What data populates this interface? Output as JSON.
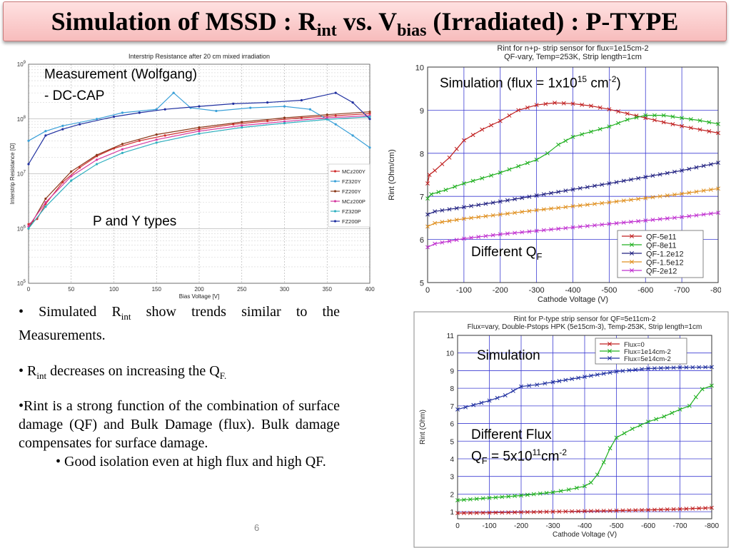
{
  "title": {
    "main": "Simulation of MSSD : R",
    "sub1": "int",
    "mid": " vs. V",
    "sub2": "bias",
    "rest": " (Irradiated) :  P-TYPE"
  },
  "colors": {
    "title_bg": "#f7bcbc",
    "grid_blue": "#3c3cd2",
    "grid_gray": "#c8c8c8"
  },
  "measurement": {
    "callout1": "Measurement (Wolfgang)",
    "callout2": "-    DC-CAP",
    "callout3": "P and Y types",
    "chart_data": {
      "type": "line",
      "title": "Interstrip Resistance after 20 cm mixed irradiation",
      "xlabel": "Bias Voltage [V]",
      "ylabel": "Interstrip Resistance [Ω]",
      "xlim": [
        0,
        400
      ],
      "ylim": [
        100000,
        1000000000
      ],
      "yscale": "log",
      "grid": true,
      "legend": "right",
      "xticks": [
        "0",
        "50",
        "100",
        "150",
        "200",
        "250",
        "300",
        "350",
        "400"
      ],
      "yticks": [
        {
          "b": "10",
          "e": "9"
        },
        {
          "b": "10",
          "e": "8"
        },
        {
          "b": "10",
          "e": "7"
        },
        {
          "b": "10",
          "e": "6"
        },
        {
          "b": "10",
          "e": "5"
        }
      ],
      "series": [
        {
          "name": "MCz200Y",
          "color": "#d03030",
          "points": [
            [
              0,
              1200000.0
            ],
            [
              10,
              1500000.0
            ],
            [
              20,
              2800000.0
            ],
            [
              40,
              7000000.0
            ],
            [
              60,
              13000000.0
            ],
            [
              80,
              21000000.0
            ],
            [
              100,
              29000000.0
            ],
            [
              130,
              40000000.0
            ],
            [
              160,
              50000000.0
            ],
            [
              200,
              65000000.0
            ],
            [
              240,
              80000000.0
            ],
            [
              280,
              92000000.0
            ],
            [
              320,
              105000000.0
            ],
            [
              360,
              115000000.0
            ],
            [
              400,
              125000000.0
            ]
          ]
        },
        {
          "name": "FZ320Y",
          "color": "#3aa0d8",
          "points": [
            [
              0,
              40000000.0
            ],
            [
              20,
              60000000.0
            ],
            [
              40,
              75000000.0
            ],
            [
              80,
              100000000.0
            ],
            [
              110,
              130000000.0
            ],
            [
              150,
              150000000.0
            ],
            [
              170,
              300000000.0
            ],
            [
              190,
              160000000.0
            ],
            [
              220,
              140000000.0
            ],
            [
              260,
              160000000.0
            ],
            [
              300,
              170000000.0
            ],
            [
              330,
              150000000.0
            ],
            [
              360,
              80000000.0
            ],
            [
              380,
              50000000.0
            ],
            [
              400,
              30000000.0
            ]
          ]
        },
        {
          "name": "FZ200Y",
          "color": "#8b3a1a",
          "points": [
            [
              0,
              1000000.0
            ],
            [
              20,
              3500000.0
            ],
            [
              50,
              11000000.0
            ],
            [
              80,
              22000000.0
            ],
            [
              110,
              35000000.0
            ],
            [
              150,
              52000000.0
            ],
            [
              200,
              70000000.0
            ],
            [
              250,
              88000000.0
            ],
            [
              300,
              105000000.0
            ],
            [
              350,
              120000000.0
            ],
            [
              400,
              135000000.0
            ]
          ]
        },
        {
          "name": "MCz200P",
          "color": "#d43aa0",
          "points": [
            [
              0,
              1100000.0
            ],
            [
              20,
              3000000.0
            ],
            [
              50,
              9000000.0
            ],
            [
              80,
              18000000.0
            ],
            [
              110,
              28000000.0
            ],
            [
              150,
              42000000.0
            ],
            [
              200,
              60000000.0
            ],
            [
              250,
              76000000.0
            ],
            [
              300,
              90000000.0
            ],
            [
              350,
              105000000.0
            ],
            [
              400,
              115000000.0
            ]
          ]
        },
        {
          "name": "FZ320P",
          "color": "#30b0c0",
          "points": [
            [
              0,
              1000000.0
            ],
            [
              20,
              2500000.0
            ],
            [
              50,
              7500000.0
            ],
            [
              80,
              15000000.0
            ],
            [
              110,
              24000000.0
            ],
            [
              150,
              37000000.0
            ],
            [
              200,
              54000000.0
            ],
            [
              250,
              70000000.0
            ],
            [
              300,
              84000000.0
            ],
            [
              350,
              98000000.0
            ],
            [
              400,
              110000000.0
            ]
          ]
        },
        {
          "name": "FZ200P",
          "color": "#2030a0",
          "points": [
            [
              0,
              15000000.0
            ],
            [
              20,
              50000000.0
            ],
            [
              40,
              65000000.0
            ],
            [
              60,
              80000000.0
            ],
            [
              100,
              110000000.0
            ],
            [
              130,
              130000000.0
            ],
            [
              160,
              150000000.0
            ],
            [
              200,
              170000000.0
            ],
            [
              240,
              190000000.0
            ],
            [
              280,
              200000000.0
            ],
            [
              320,
              220000000.0
            ],
            [
              360,
              300000000.0
            ],
            [
              380,
              200000000.0
            ],
            [
              400,
              100000000.0
            ]
          ]
        }
      ]
    }
  },
  "sim_qf": {
    "callout": {
      "prefix": "Simulation (flux = 1x10",
      "sup1": "15",
      "mid": " cm",
      "sup2": "-2",
      "suffix": ")"
    },
    "callout2": {
      "prefix": "Different Q",
      "sub": "F"
    },
    "chart_data": {
      "type": "line",
      "title": "Rint for n+p- strip sensor for flux=1e15cm-2",
      "subtitle": "QF-vary, Temp=253K, Strip length=1cm",
      "xlabel": "Cathode Voltage (V)",
      "ylabel": "Rint (Ohm/cm)",
      "xlim": [
        0,
        -800
      ],
      "ylim": [
        5,
        10
      ],
      "grid": true,
      "legend": "bottom-right",
      "xticks": [
        "0",
        "-100",
        "-200",
        "-300",
        "-400",
        "-500",
        "-600",
        "-700",
        "-800"
      ],
      "yticks": [
        "5",
        "6",
        "7",
        "8",
        "9",
        "10"
      ],
      "series": [
        {
          "name": "QF-5e11",
          "color": "#c02020",
          "points": [
            [
              0,
              7.3
            ],
            [
              -5,
              7.5
            ],
            [
              -20,
              7.6
            ],
            [
              -60,
              7.9
            ],
            [
              -100,
              8.3
            ],
            [
              -150,
              8.55
            ],
            [
              -200,
              8.75
            ],
            [
              -250,
              9.0
            ],
            [
              -300,
              9.12
            ],
            [
              -350,
              9.17
            ],
            [
              -400,
              9.15
            ],
            [
              -450,
              9.1
            ],
            [
              -500,
              9.02
            ],
            [
              -550,
              8.92
            ],
            [
              -600,
              8.82
            ],
            [
              -650,
              8.72
            ],
            [
              -700,
              8.63
            ],
            [
              -750,
              8.55
            ],
            [
              -800,
              8.47
            ]
          ]
        },
        {
          "name": "QF-8e11",
          "color": "#20b020",
          "points": [
            [
              0,
              6.95
            ],
            [
              -10,
              7.05
            ],
            [
              -50,
              7.15
            ],
            [
              -100,
              7.3
            ],
            [
              -150,
              7.42
            ],
            [
              -200,
              7.55
            ],
            [
              -250,
              7.7
            ],
            [
              -300,
              7.85
            ],
            [
              -330,
              8.0
            ],
            [
              -360,
              8.2
            ],
            [
              -400,
              8.38
            ],
            [
              -450,
              8.5
            ],
            [
              -500,
              8.62
            ],
            [
              -550,
              8.78
            ],
            [
              -600,
              8.88
            ],
            [
              -650,
              8.88
            ],
            [
              -700,
              8.82
            ],
            [
              -750,
              8.76
            ],
            [
              -800,
              8.68
            ]
          ]
        },
        {
          "name": "QF-1.2e12",
          "color": "#202080",
          "points": [
            [
              0,
              6.58
            ],
            [
              -20,
              6.65
            ],
            [
              -100,
              6.75
            ],
            [
              -200,
              6.88
            ],
            [
              -300,
              7.02
            ],
            [
              -400,
              7.16
            ],
            [
              -500,
              7.3
            ],
            [
              -600,
              7.45
            ],
            [
              -700,
              7.6
            ],
            [
              -800,
              7.78
            ]
          ]
        },
        {
          "name": "QF-1.5e12",
          "color": "#e09020",
          "points": [
            [
              0,
              6.3
            ],
            [
              -20,
              6.38
            ],
            [
              -100,
              6.48
            ],
            [
              -200,
              6.58
            ],
            [
              -300,
              6.68
            ],
            [
              -400,
              6.77
            ],
            [
              -500,
              6.86
            ],
            [
              -600,
              6.96
            ],
            [
              -700,
              7.06
            ],
            [
              -800,
              7.18
            ]
          ]
        },
        {
          "name": "QF-2e12",
          "color": "#c030d0",
          "points": [
            [
              0,
              5.82
            ],
            [
              -20,
              5.9
            ],
            [
              -100,
              6.02
            ],
            [
              -200,
              6.12
            ],
            [
              -300,
              6.2
            ],
            [
              -400,
              6.28
            ],
            [
              -500,
              6.36
            ],
            [
              -600,
              6.44
            ],
            [
              -700,
              6.52
            ],
            [
              -800,
              6.62
            ]
          ]
        }
      ]
    }
  },
  "sim_flux": {
    "callout1": "Simulation",
    "callout2": "Different Flux",
    "callout3": {
      "prefix": "Q",
      "sub": "F",
      "mid": " = 5x10",
      "sup1": "11",
      "suffix": "cm",
      "sup2": "-2"
    },
    "chart_data": {
      "type": "line",
      "title": "Rint for P-type strip sensor for QF=5e11cm-2",
      "subtitle": "Flux=vary, Double-Pstops HPK (5e15cm-3), Temp-253K, Strip length=1cm",
      "xlabel": "Cathode Voltage (V)",
      "ylabel": "Rint (Ohm)",
      "xlim": [
        0,
        -800
      ],
      "ylim": [
        0.6,
        11
      ],
      "grid": true,
      "legend": "top-right",
      "xticks": [
        "0",
        "-100",
        "-200",
        "-300",
        "-400",
        "-500",
        "-600",
        "-700",
        "-800"
      ],
      "yticks": [
        "1",
        "2",
        "3",
        "4",
        "5",
        "6",
        "7",
        "8",
        "9",
        "10",
        "11"
      ],
      "series": [
        {
          "name": "Flux=0",
          "color": "#c02020",
          "points": [
            [
              0,
              0.92
            ],
            [
              -100,
              0.94
            ],
            [
              -200,
              0.97
            ],
            [
              -300,
              1.0
            ],
            [
              -400,
              1.03
            ],
            [
              -500,
              1.06
            ],
            [
              -600,
              1.1
            ],
            [
              -700,
              1.15
            ],
            [
              -800,
              1.22
            ]
          ]
        },
        {
          "name": "Flux=1e14cm-2",
          "color": "#20b020",
          "points": [
            [
              0,
              1.65
            ],
            [
              -100,
              1.78
            ],
            [
              -200,
              1.92
            ],
            [
              -300,
              2.1
            ],
            [
              -350,
              2.25
            ],
            [
              -400,
              2.45
            ],
            [
              -420,
              2.65
            ],
            [
              -440,
              3.1
            ],
            [
              -460,
              3.8
            ],
            [
              -480,
              4.6
            ],
            [
              -500,
              5.2
            ],
            [
              -550,
              5.7
            ],
            [
              -600,
              6.1
            ],
            [
              -650,
              6.4
            ],
            [
              -700,
              6.8
            ],
            [
              -730,
              7.0
            ],
            [
              -750,
              7.5
            ],
            [
              -770,
              7.95
            ],
            [
              -800,
              8.15
            ]
          ]
        },
        {
          "name": "Flux=5e14cm-2",
          "color": "#2030a0",
          "points": [
            [
              0,
              6.8
            ],
            [
              -50,
              7.05
            ],
            [
              -100,
              7.3
            ],
            [
              -150,
              7.6
            ],
            [
              -200,
              8.1
            ],
            [
              -250,
              8.2
            ],
            [
              -300,
              8.35
            ],
            [
              -400,
              8.65
            ],
            [
              -500,
              8.95
            ],
            [
              -600,
              9.12
            ],
            [
              -700,
              9.18
            ],
            [
              -800,
              9.2
            ]
          ]
        }
      ]
    }
  },
  "bullets": {
    "b1_pre": "• Simulated R",
    "b1_sub": "int",
    "b1_post": " show trends similar to the Measurements.",
    "b2_pre": "• R",
    "b2_sub": "int",
    "b2_mid": " decreases on increasing the Q",
    "b2_sub2": "F.",
    "b3": "•Rint is a strong function of the combination of surface damage (QF) and Bulk Damage (flux). Bulk damage compensates for surface damage.",
    "b4": "• Good isolation even at  high flux and high QF."
  },
  "page_number": "6"
}
